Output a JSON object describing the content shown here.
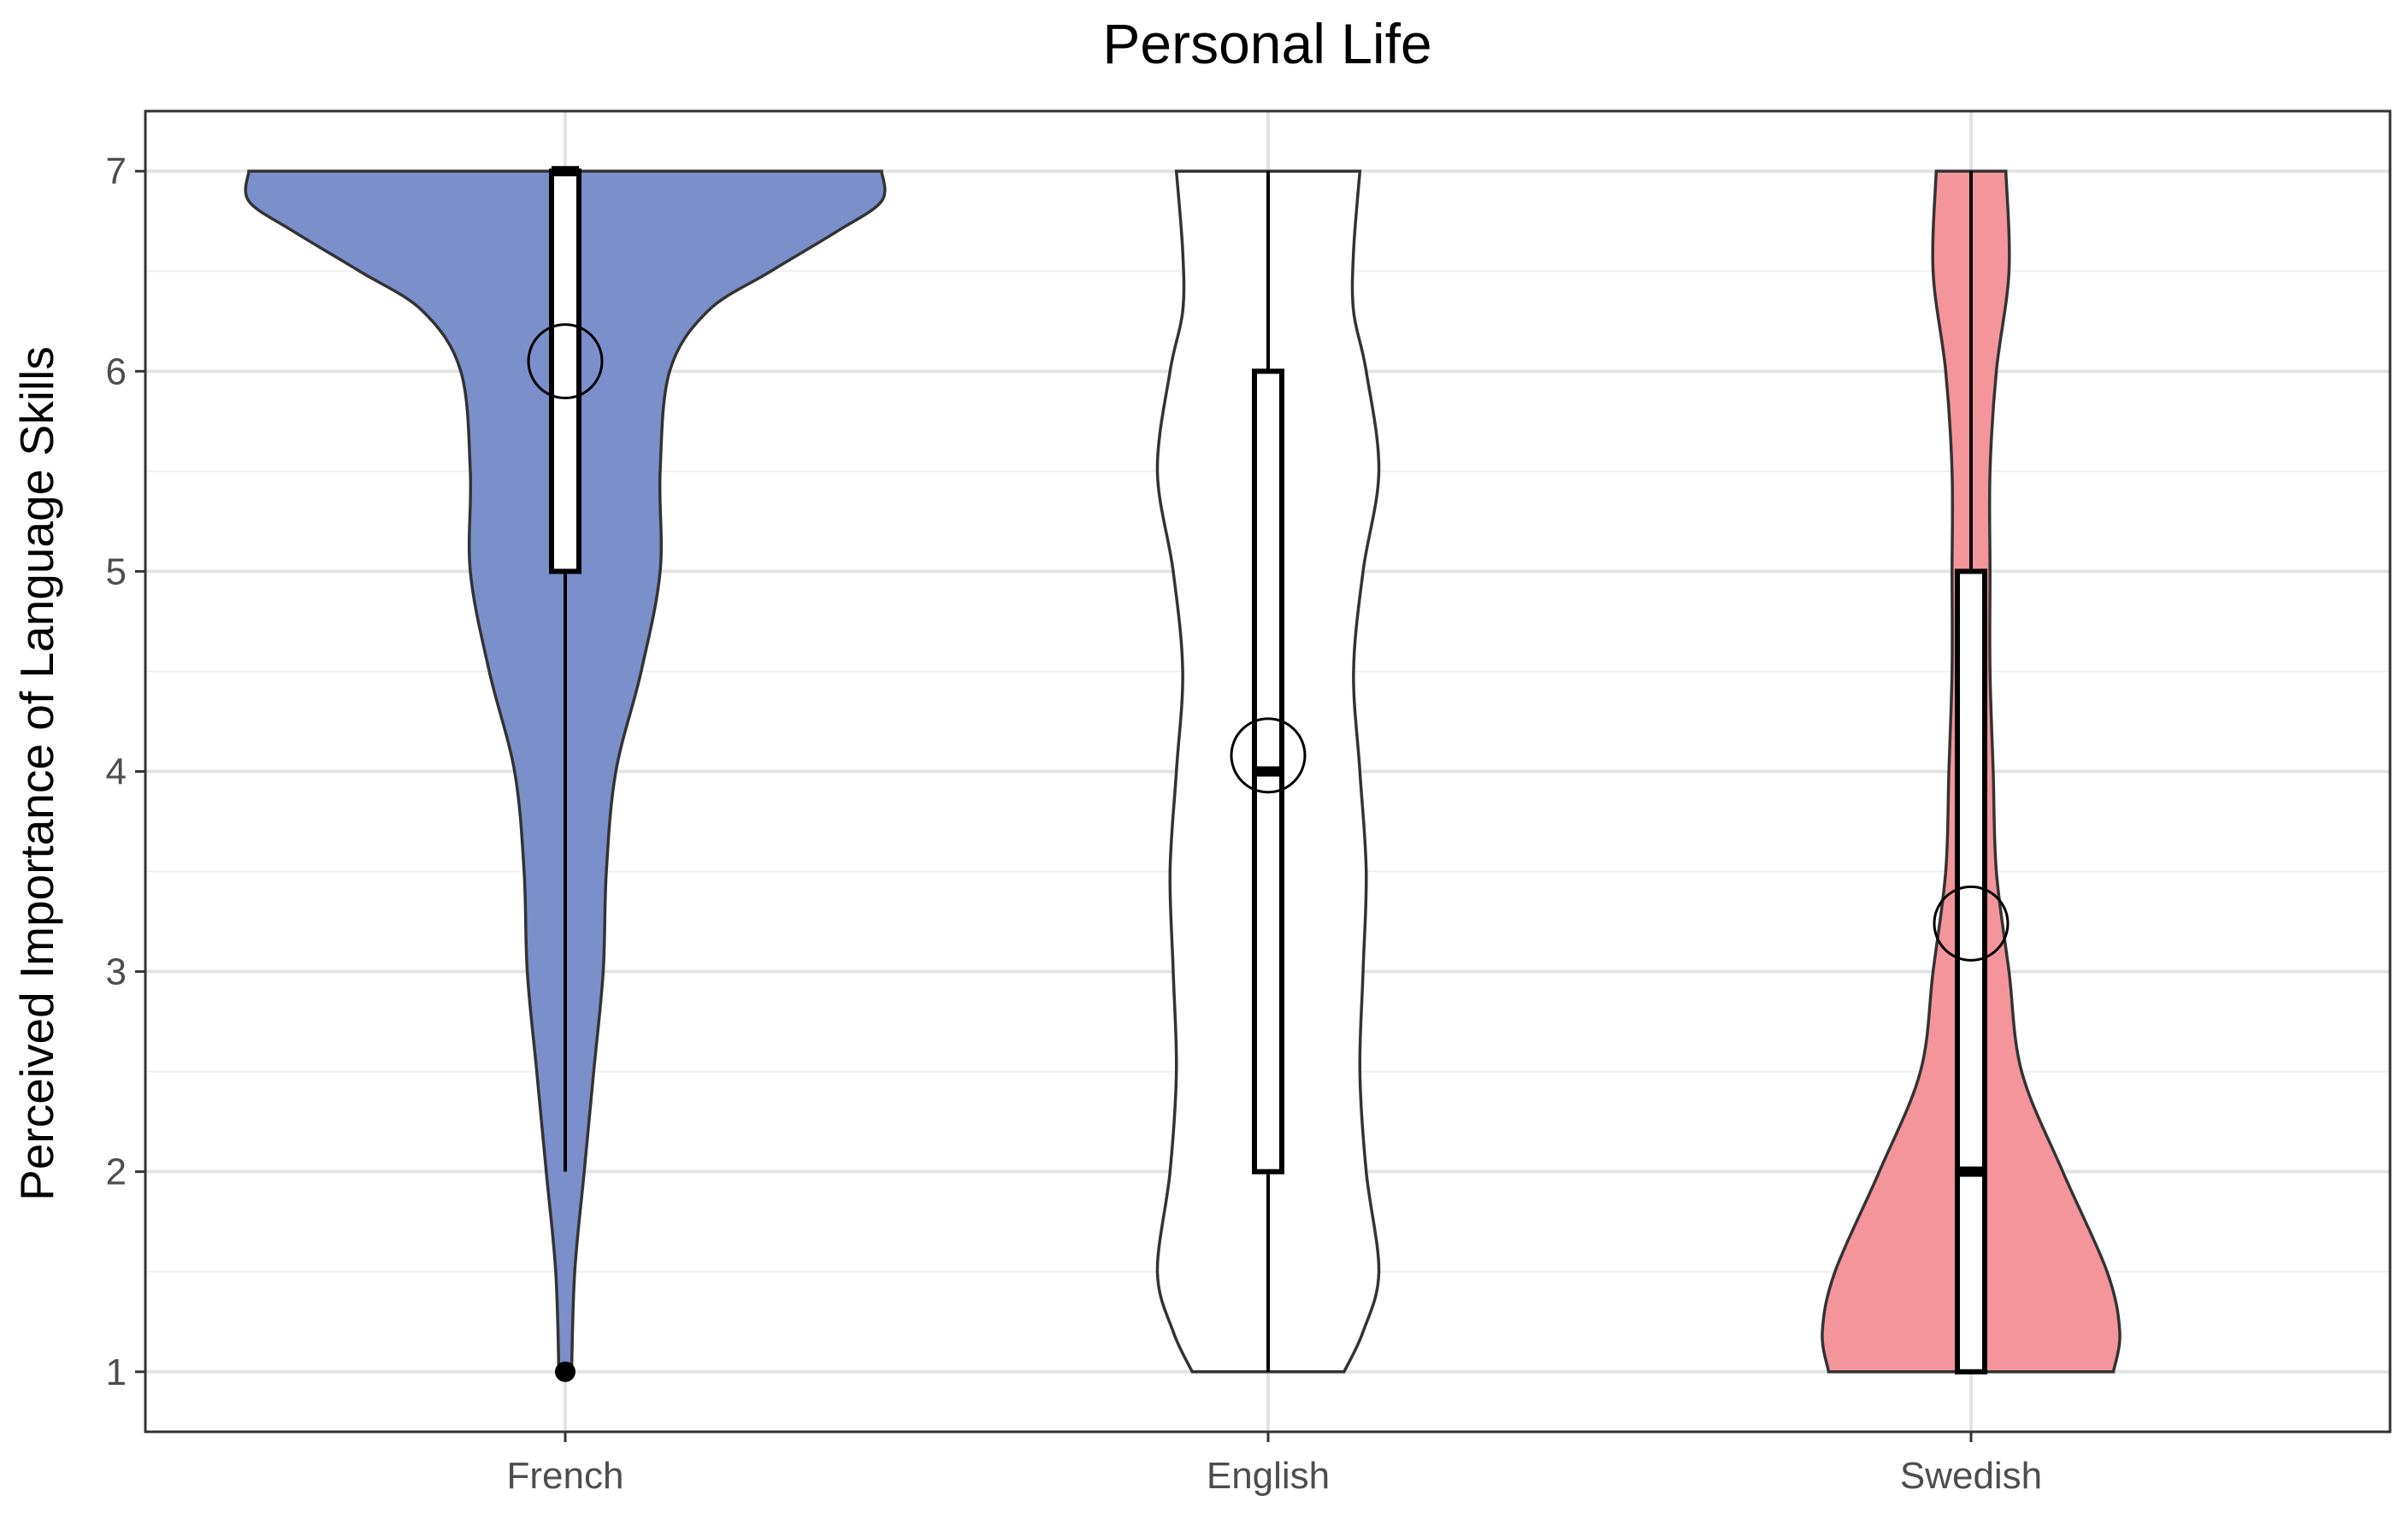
{
  "chart_data": {
    "type": "violin",
    "title": "Personal Life",
    "xlabel": "",
    "ylabel": "Perceived Importance of Language Skills",
    "ylim": [
      0.7,
      7.3
    ],
    "yticks": [
      1,
      2,
      3,
      4,
      5,
      6,
      7
    ],
    "grid": true,
    "categories": [
      "French",
      "English",
      "Swedish"
    ],
    "colors": {
      "French": "#7b8fcb",
      "English": "#ffffff",
      "Swedish": "#f4959b"
    },
    "series": [
      {
        "category": "French",
        "box": {
          "min": 2,
          "q1": 5,
          "median": 7,
          "q3": 7,
          "max": 7
        },
        "mean": 6.05,
        "outliers": [
          1
        ],
        "density_width": [
          [
            1,
            0.02
          ],
          [
            1.5,
            0.03
          ],
          [
            2,
            0.06
          ],
          [
            2.5,
            0.09
          ],
          [
            3,
            0.12
          ],
          [
            3.5,
            0.13
          ],
          [
            4,
            0.16
          ],
          [
            4.5,
            0.24
          ],
          [
            5,
            0.3
          ],
          [
            5.5,
            0.3
          ],
          [
            6,
            0.33
          ],
          [
            6.3,
            0.45
          ],
          [
            6.5,
            0.65
          ],
          [
            6.7,
            0.86
          ],
          [
            6.85,
            1.0
          ],
          [
            7,
            1.0
          ]
        ]
      },
      {
        "category": "English",
        "box": {
          "min": 1,
          "q1": 2,
          "median": 4,
          "q3": 6,
          "max": 7
        },
        "mean": 4.08,
        "outliers": [],
        "density_width": [
          [
            1,
            0.24
          ],
          [
            1.2,
            0.3
          ],
          [
            1.5,
            0.35
          ],
          [
            2,
            0.31
          ],
          [
            2.5,
            0.29
          ],
          [
            3,
            0.3
          ],
          [
            3.5,
            0.31
          ],
          [
            4,
            0.29
          ],
          [
            4.5,
            0.27
          ],
          [
            5,
            0.3
          ],
          [
            5.5,
            0.35
          ],
          [
            6,
            0.31
          ],
          [
            6.3,
            0.27
          ],
          [
            6.6,
            0.27
          ],
          [
            7,
            0.29
          ]
        ]
      },
      {
        "category": "Swedish",
        "box": {
          "min": 1,
          "q1": 1,
          "median": 2,
          "q3": 5,
          "max": 7
        },
        "mean": 3.24,
        "outliers": [],
        "density_width": [
          [
            1,
            0.45
          ],
          [
            1.2,
            0.47
          ],
          [
            1.5,
            0.43
          ],
          [
            2,
            0.29
          ],
          [
            2.5,
            0.16
          ],
          [
            3,
            0.12
          ],
          [
            3.5,
            0.08
          ],
          [
            4,
            0.07
          ],
          [
            4.5,
            0.06
          ],
          [
            5,
            0.06
          ],
          [
            5.5,
            0.06
          ],
          [
            6,
            0.08
          ],
          [
            6.5,
            0.12
          ],
          [
            7,
            0.11
          ]
        ]
      }
    ]
  }
}
